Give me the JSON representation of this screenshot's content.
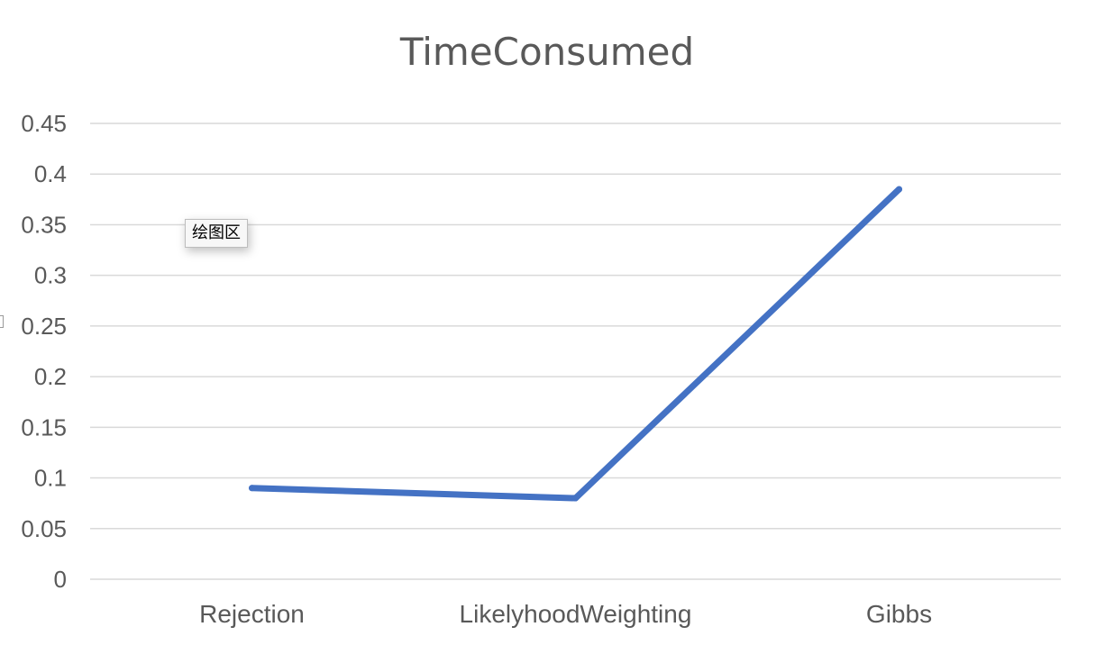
{
  "chart_data": {
    "type": "line",
    "title": "TimeConsumed",
    "categories": [
      "Rejection",
      "LikelyhoodWeighting",
      "Gibbs"
    ],
    "series": [
      {
        "values": [
          0.09,
          0.08,
          0.385
        ]
      }
    ],
    "ylim": [
      0,
      0.45
    ],
    "yticks": [
      "0",
      "0.05",
      "0.1",
      "0.15",
      "0.2",
      "0.25",
      "0.3",
      "0.35",
      "0.4",
      "0.45"
    ],
    "grid": true,
    "legend": "none",
    "color": "#4472c4"
  },
  "tooltip": {
    "label": "绘图区"
  }
}
